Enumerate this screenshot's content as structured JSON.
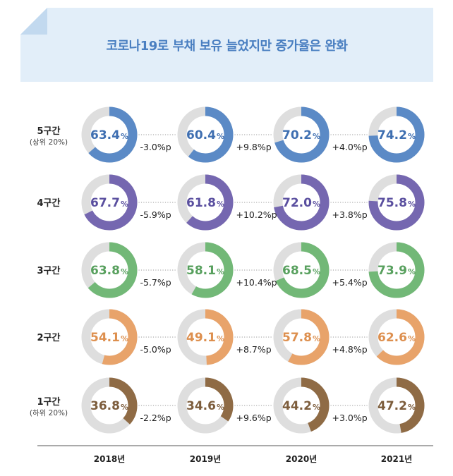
{
  "title": "코로나19로 부채 보유 늘었지만 증가율은 완화",
  "chart_data": {
    "type": "donut-grid",
    "title": "코로나19로 부채 보유 늘었지만 증가율은 완화",
    "years": [
      "2018년",
      "2019년",
      "2020년",
      "2021년"
    ],
    "percent_suffix": "%",
    "rows": [
      {
        "label": "5구간",
        "sublabel": "(상위 20%)",
        "color": "#5b8ac6",
        "values": [
          63.4,
          60.4,
          70.2,
          74.2
        ],
        "changes": [
          "-3.0%p",
          "+9.8%p",
          "+4.0%p"
        ]
      },
      {
        "label": "4구간",
        "sublabel": "",
        "color": "#7567b0",
        "values": [
          67.7,
          61.8,
          72.0,
          75.8
        ],
        "changes": [
          "-5.9%p",
          "+10.2%p",
          "+3.8%p"
        ]
      },
      {
        "label": "3구간",
        "sublabel": "",
        "color": "#72b877",
        "values": [
          63.8,
          58.1,
          68.5,
          73.9
        ],
        "changes": [
          "-5.7%p",
          "+10.4%p",
          "+5.4%p"
        ]
      },
      {
        "label": "2구간",
        "sublabel": "",
        "color": "#e8a36a",
        "values": [
          54.1,
          49.1,
          57.8,
          62.6
        ],
        "changes": [
          "-5.0%p",
          "+8.7%p",
          "+4.8%p"
        ]
      },
      {
        "label": "1구간",
        "sublabel": "(하위 20%)",
        "color": "#8f6b45",
        "values": [
          36.8,
          34.6,
          44.2,
          47.2
        ],
        "changes": [
          "-2.2%p",
          "+9.6%p",
          "+3.0%p"
        ]
      }
    ],
    "track_color": "#dedede",
    "text_colors": [
      "#3f6fb1",
      "#5a4f9f",
      "#58a05e",
      "#dd8f4e",
      "#7d5d3c"
    ]
  }
}
